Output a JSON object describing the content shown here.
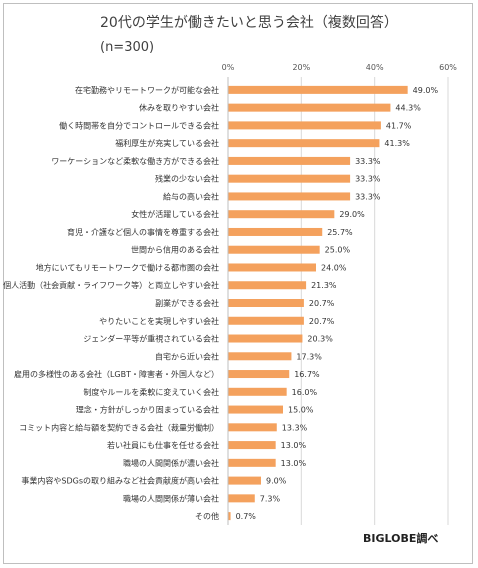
{
  "chart_data": {
    "type": "bar",
    "orientation": "horizontal",
    "title": "20代の学生が働きたいと思う会社（複数回答）",
    "subtitle": "(n=300)",
    "credit": "BIGLOBE調べ",
    "xlim": [
      0,
      60
    ],
    "ticks": [
      "0%",
      "20%",
      "40%",
      "60%"
    ],
    "tick_values": [
      0,
      20,
      40,
      60
    ],
    "grid": true,
    "bar_color": "#f4a15d",
    "categories": [
      "在宅勤務やリモートワークが可能な会社",
      "休みを取りやすい会社",
      "働く時間帯を自分でコントロールできる会社",
      "福利厚生が充実している会社",
      "ワーケーションなど柔軟な働き方ができる会社",
      "残業の少ない会社",
      "給与の高い会社",
      "女性が活躍している会社",
      "育児・介護など個人の事情を尊重する会社",
      "世間から信用のある会社",
      "地方にいてもリモートワークで働ける都市圏の会社",
      "個人活動（社会貢献・ライフワーク等）と両立しやすい会社",
      "副業ができる会社",
      "やりたいことを実現しやすい会社",
      "ジェンダー平等が重視されている会社",
      "自宅から近い会社",
      "雇用の多様性のある会社（LGBT・障害者・外国人など）",
      "制度やルールを柔軟に変えていく会社",
      "理念・方針がしっかり固まっている会社",
      "コミット内容と給与額を契約できる会社（裁量労働制）",
      "若い社員にも仕事を任せる会社",
      "職場の人間関係が濃い会社",
      "事業内容やSDGsの取り組みなど社会貢献度が高い会社",
      "職場の人間関係が薄い会社",
      "その他"
    ],
    "values": [
      49.0,
      44.3,
      41.7,
      41.3,
      33.3,
      33.3,
      33.3,
      29.0,
      25.7,
      25.0,
      24.0,
      21.3,
      20.7,
      20.7,
      20.3,
      17.3,
      16.7,
      16.0,
      15.0,
      13.3,
      13.0,
      13.0,
      9.0,
      7.3,
      0.7
    ],
    "value_labels": [
      "49.0%",
      "44.3%",
      "41.7%",
      "41.3%",
      "33.3%",
      "33.3%",
      "33.3%",
      "29.0%",
      "25.7%",
      "25.0%",
      "24.0%",
      "21.3%",
      "20.7%",
      "20.7%",
      "20.3%",
      "17.3%",
      "16.7%",
      "16.0%",
      "15.0%",
      "13.3%",
      "13.0%",
      "13.0%",
      "9.0%",
      "7.3%",
      "0.7%"
    ]
  }
}
